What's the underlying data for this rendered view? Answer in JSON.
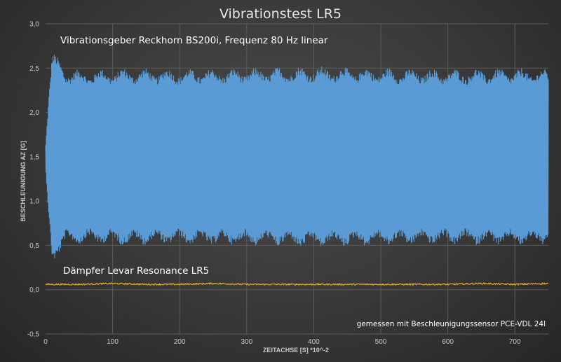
{
  "chart_data": {
    "type": "line",
    "title": "Vibrationstest LR5",
    "xlabel": "ZEITACHSE [S] *10^-2",
    "ylabel": "BESCHLEUNIGUNG AZ [G]",
    "xlim": [
      0,
      750
    ],
    "ylim": [
      -0.5,
      3.0
    ],
    "x_ticks": [
      0,
      100,
      200,
      300,
      400,
      500,
      600,
      700
    ],
    "x_tick_labels": [
      "0",
      "100",
      "200",
      "300",
      "400",
      "500",
      "600",
      "700"
    ],
    "y_ticks": [
      -0.5,
      0.0,
      0.5,
      1.0,
      1.5,
      2.0,
      2.5,
      3.0
    ],
    "y_tick_labels": [
      "-0,5",
      "0,0",
      "0,5",
      "1,0",
      "1,5",
      "2,0",
      "2,5",
      "3,0"
    ],
    "grid": true,
    "legend": "none",
    "annotations": [
      "Vibrationsgeber Reckhorn BS200i, Frequenz 80 Hz linear",
      "Dämpfer Levar Resonance LR5",
      "gemessen mit Beschleunigungssensor PCE-VDL 24l"
    ],
    "series": [
      {
        "color": "#5b9bd5",
        "x_range": [
          0,
          750
        ],
        "points_per_x": 2,
        "mean": 1.5,
        "envelope_x": [
          0,
          5,
          10,
          15,
          30,
          60,
          120,
          200,
          300,
          400,
          500,
          600,
          700,
          750
        ],
        "envelope_amp": [
          0.15,
          0.75,
          1.2,
          1.15,
          1.0,
          0.98,
          1.0,
          0.99,
          1.0,
          1.02,
          1.0,
          0.99,
          1.0,
          0.99
        ],
        "beat_period": 33,
        "beat_depth": 0.1
      },
      {
        "color": "#e6b422",
        "x": [
          0,
          50,
          100,
          150,
          200,
          250,
          300,
          350,
          400,
          450,
          500,
          550,
          600,
          650,
          700,
          750
        ],
        "y": [
          0.06,
          0.06,
          0.07,
          0.06,
          0.06,
          0.07,
          0.06,
          0.06,
          0.06,
          0.06,
          0.06,
          0.06,
          0.06,
          0.07,
          0.06,
          0.07
        ],
        "noise": 0.008
      }
    ]
  }
}
